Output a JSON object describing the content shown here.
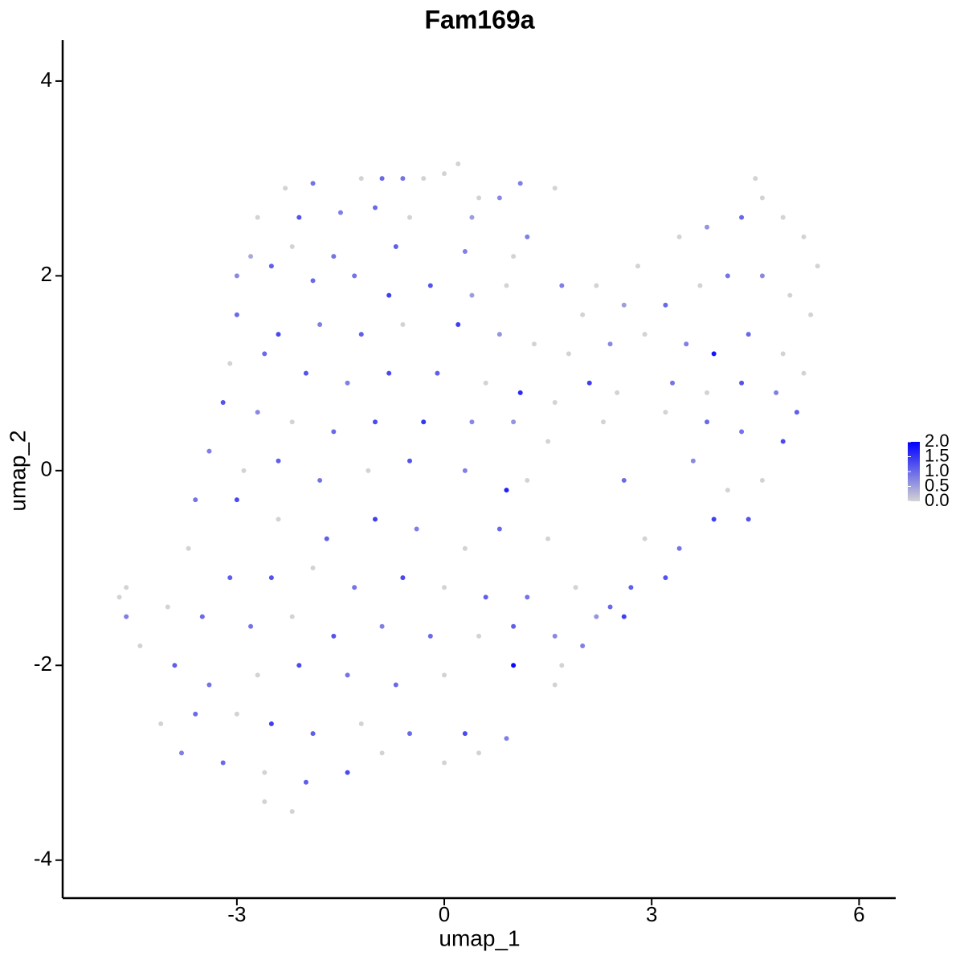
{
  "chart_data": {
    "type": "scatter",
    "title": "Fam169a",
    "x_label": "umap_1",
    "y_label": "umap_2",
    "xlim": [
      -5.52,
      6.53
    ],
    "ylim": [
      -4.39,
      4.42
    ],
    "xticks": [
      -3,
      0,
      3,
      6
    ],
    "yticks": [
      -4,
      -2,
      0,
      2,
      4
    ],
    "color_low": "#d3d3d3",
    "color_high": "#0000ff",
    "clim": [
      0,
      2
    ],
    "cticks": [
      {
        "value": 0,
        "label": "0.0"
      },
      {
        "value": 0.5,
        "label": "0.5"
      },
      {
        "value": 1,
        "label": "1.0"
      },
      {
        "value": 1.5,
        "label": "1.5"
      },
      {
        "value": 2,
        "label": "2.0"
      }
    ],
    "x": [
      -2.3,
      -1.9,
      -1.2,
      -0.9,
      -0.6,
      -0.3,
      0.0,
      0.2,
      0.5,
      0.8,
      1.1,
      1.6,
      -2.7,
      -2.1,
      -1.5,
      -1.0,
      -0.5,
      0.4,
      1.2,
      -2.8,
      -2.2,
      -1.6,
      -0.7,
      0.3,
      1.0,
      -3.0,
      -2.5,
      -1.9,
      -1.3,
      -0.8,
      -0.2,
      0.4,
      0.9,
      -3.0,
      -2.4,
      -1.8,
      -1.2,
      -0.6,
      0.2,
      0.8,
      1.3,
      -3.1,
      -2.6,
      -2.0,
      -1.4,
      -0.8,
      -0.1,
      0.6,
      1.1,
      1.6,
      -3.2,
      -2.7,
      -2.2,
      -1.6,
      -1.0,
      -0.3,
      0.4,
      1.0,
      1.5,
      -3.4,
      -2.9,
      -2.4,
      -1.8,
      -1.1,
      -0.5,
      0.3,
      0.9,
      1.2,
      -3.6,
      -3.0,
      -2.4,
      -1.7,
      -1.0,
      -0.4,
      0.3,
      0.8,
      1.5,
      -3.7,
      -3.1,
      -2.5,
      -1.9,
      -1.3,
      -0.6,
      0.0,
      0.6,
      1.2,
      1.9,
      -4.7,
      -4.6,
      -4.6,
      -4.0,
      -3.5,
      -2.8,
      -2.2,
      -1.6,
      -0.9,
      -0.2,
      0.5,
      1.0,
      1.6,
      -4.4,
      -3.9,
      -3.4,
      -2.7,
      -2.1,
      -1.4,
      -0.7,
      0.0,
      1.0,
      1.6,
      -4.1,
      -3.6,
      -3.0,
      -2.5,
      -1.9,
      -1.2,
      -0.5,
      0.3,
      0.9,
      -3.8,
      -3.2,
      -2.6,
      -2.0,
      -1.4,
      -0.9,
      0.0,
      0.5,
      -2.6,
      -2.2,
      1.7,
      2.2,
      2.8,
      3.4,
      3.8,
      4.3,
      4.5,
      4.6,
      4.9,
      5.2,
      5.4,
      2.0,
      2.6,
      3.2,
      3.7,
      4.1,
      4.6,
      5.0,
      5.3,
      1.8,
      2.4,
      2.9,
      3.5,
      3.9,
      4.4,
      4.9,
      5.2,
      2.1,
      2.5,
      3.3,
      3.8,
      4.3,
      4.8,
      5.1,
      2.3,
      3.2,
      3.8,
      4.3,
      4.9,
      2.6,
      3.6,
      4.1,
      4.6,
      3.9,
      4.4,
      2.9,
      3.4,
      3.2,
      2.7,
      2.4,
      2.6,
      2.2,
      2.0,
      1.7
    ],
    "values": [
      2.9,
      2.95,
      3.0,
      3.0,
      3.0,
      3.0,
      3.05,
      3.15,
      2.8,
      2.8,
      2.95,
      2.9,
      2.6,
      2.6,
      2.65,
      2.7,
      2.6,
      2.6,
      2.4,
      2.2,
      2.3,
      2.2,
      2.3,
      2.25,
      2.2,
      2.0,
      2.1,
      1.95,
      2.0,
      1.8,
      1.9,
      1.8,
      1.9,
      1.6,
      1.4,
      1.5,
      1.4,
      1.5,
      1.5,
      1.4,
      1.3,
      1.1,
      1.2,
      1.0,
      0.9,
      1.0,
      1.0,
      0.9,
      0.8,
      0.7,
      0.7,
      0.6,
      0.5,
      0.4,
      0.5,
      0.5,
      0.5,
      0.5,
      0.3,
      0.2,
      0.0,
      0.1,
      -0.1,
      0.0,
      0.1,
      0.0,
      -0.2,
      -0.1,
      -0.3,
      -0.3,
      -0.5,
      -0.7,
      -0.5,
      -0.6,
      -0.8,
      -0.6,
      -0.7,
      -0.8,
      -1.1,
      -1.1,
      -1.0,
      -1.2,
      -1.1,
      -1.2,
      -1.3,
      -1.3,
      -1.2,
      -1.3,
      -1.2,
      -1.5,
      -1.4,
      -1.5,
      -1.6,
      -1.5,
      -1.7,
      -1.6,
      -1.7,
      -1.7,
      -1.6,
      -1.7,
      -1.8,
      -2.0,
      -2.2,
      -2.1,
      -2.0,
      -2.1,
      -2.2,
      -2.1,
      -2.0,
      -2.2,
      -2.6,
      -2.5,
      -2.5,
      -2.6,
      -2.7,
      -2.6,
      -2.7,
      -2.7,
      -2.75,
      -2.9,
      -3.0,
      -3.1,
      -3.2,
      -3.1,
      -2.9,
      -3.0,
      -2.9,
      -3.4,
      -3.5,
      1.9,
      1.9,
      2.1,
      2.4,
      2.5,
      2.6,
      3.0,
      2.8,
      2.6,
      2.4,
      2.1,
      1.6,
      1.7,
      1.7,
      1.9,
      2.0,
      2.0,
      1.8,
      1.6,
      1.2,
      1.3,
      1.4,
      1.3,
      1.2,
      1.4,
      1.2,
      1.0,
      0.9,
      0.8,
      0.9,
      0.8,
      0.9,
      0.8,
      0.6,
      0.5,
      0.6,
      0.5,
      0.4,
      0.3,
      -0.1,
      0.1,
      -0.2,
      -0.1,
      -0.5,
      -0.5,
      -0.7,
      -0.8,
      -1.1,
      -1.2,
      -1.4,
      -1.5,
      -1.5,
      -1.8,
      -2.0
    ],
    "expression": [
      0,
      0.9,
      0,
      1.0,
      0.9,
      0,
      0,
      0,
      0,
      0.7,
      0.8,
      0,
      0,
      1.2,
      0.8,
      1.0,
      0,
      0.5,
      0.8,
      0.4,
      0,
      0.9,
      1.1,
      0.8,
      0,
      0.7,
      1.1,
      1.0,
      0.9,
      1.4,
      1.2,
      0.5,
      0,
      1.0,
      1.3,
      0.8,
      1.1,
      0,
      1.4,
      0.6,
      0,
      0,
      1.0,
      1.2,
      0.8,
      1.3,
      1.1,
      0,
      1.6,
      0,
      1.2,
      0.7,
      0,
      1.0,
      1.3,
      1.5,
      0.7,
      0.6,
      0,
      0.8,
      0,
      1.1,
      0.9,
      0,
      1.2,
      0.8,
      1.7,
      0,
      0.9,
      1.3,
      0,
      1.1,
      1.4,
      0.8,
      0,
      1.0,
      0,
      0,
      1.1,
      1.2,
      0,
      0.9,
      1.3,
      0,
      1.1,
      0.9,
      0,
      0,
      0,
      0.8,
      0,
      1.0,
      0.9,
      0,
      1.2,
      0.8,
      1.0,
      0,
      1.1,
      0.7,
      0,
      1.1,
      0.9,
      0,
      1.3,
      0.9,
      1.0,
      0,
      1.9,
      0,
      0,
      1.0,
      0,
      1.4,
      1.1,
      0,
      1.0,
      1.3,
      0.8,
      0.8,
      1.0,
      0,
      1.1,
      1.3,
      0,
      0,
      0,
      0,
      0,
      0.8,
      0,
      0,
      0,
      0.6,
      1.0,
      0,
      0,
      0,
      0,
      0,
      0,
      0.5,
      1.0,
      0,
      0.9,
      0.7,
      0,
      0,
      0,
      0.7,
      0,
      0.8,
      1.8,
      1.0,
      0,
      0,
      1.4,
      0,
      0.9,
      0,
      1.2,
      0.8,
      1.1,
      0,
      0,
      1.0,
      0.9,
      1.3,
      1.0,
      0.7,
      0,
      0,
      1.4,
      1.2,
      0,
      0.9,
      1.2,
      1.1,
      1.0,
      1.4,
      0.6,
      0.8,
      0
    ]
  }
}
